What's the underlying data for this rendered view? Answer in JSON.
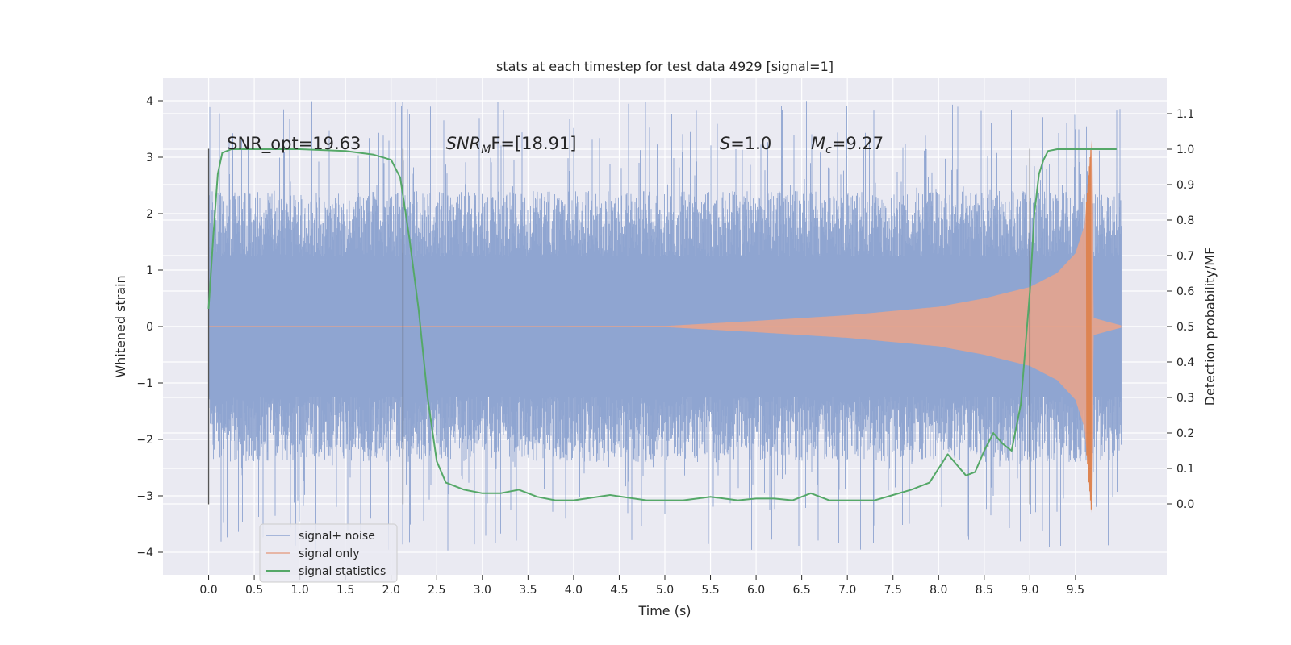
{
  "chart_data": {
    "type": "line",
    "title": "stats at each timestep for test data 4929 [signal=1]",
    "xlabel": "Time (s)",
    "ylabel": "Whitened strain",
    "y2label": "Detection probability/MF",
    "xlim": [
      -0.5,
      10.5
    ],
    "ylim": [
      -4.4,
      4.4
    ],
    "y2lim": [
      -0.2,
      1.2
    ],
    "x_ticks": [
      "0.0",
      "0.5",
      "1.0",
      "1.5",
      "2.0",
      "2.5",
      "3.0",
      "3.5",
      "4.0",
      "4.5",
      "5.0",
      "5.5",
      "6.0",
      "6.5",
      "7.0",
      "7.5",
      "8.0",
      "8.5",
      "9.0",
      "9.5"
    ],
    "y_ticks": [
      "4",
      "3",
      "2",
      "1",
      "0",
      "−1",
      "−2",
      "−3",
      "−4"
    ],
    "y2_ticks": [
      "1.1",
      "1.0",
      "0.9",
      "0.8",
      "0.7",
      "0.6",
      "0.5",
      "0.4",
      "0.3",
      "0.2",
      "0.1",
      "0.0"
    ],
    "grid": true,
    "legend_position": "lower-left",
    "annotations": {
      "snr_opt": "SNR_opt=19.63",
      "snr_mf_label": "SNR",
      "snr_mf_sub": "M",
      "snr_mf_tail": "F=[18.91]",
      "s_label": "S",
      "s_value": "=1.0",
      "mc_label": "M",
      "mc_sub": "c",
      "mc_value": "=9.27"
    },
    "markers_x": [
      0.0,
      2.13,
      9.0
    ],
    "series": [
      {
        "name": "signal+ noise",
        "color": "#8fa5d1",
        "description_envelope": {
          "x_start": 0.0,
          "x_end": 10.0,
          "typical_min": -2.5,
          "typical_max": 2.5,
          "extreme_min": -4.0,
          "extreme_max": 4.0
        }
      },
      {
        "name": "signal only",
        "color": "#e5a48d",
        "envelope": {
          "x": [
            5.0,
            6.0,
            7.0,
            8.0,
            8.5,
            9.0,
            9.3,
            9.5,
            9.6,
            9.65,
            9.68,
            9.7,
            10.0
          ],
          "amp": [
            0.01,
            0.1,
            0.2,
            0.35,
            0.5,
            0.7,
            0.95,
            1.3,
            1.8,
            2.8,
            3.4,
            0.15,
            0.02
          ]
        }
      },
      {
        "name": "signal statistics",
        "color": "#55a868",
        "axis": "right",
        "x": [
          0.0,
          0.05,
          0.1,
          0.15,
          0.25,
          0.5,
          1.0,
          1.5,
          1.8,
          2.0,
          2.1,
          2.2,
          2.3,
          2.4,
          2.5,
          2.6,
          2.8,
          3.0,
          3.2,
          3.4,
          3.6,
          3.8,
          4.0,
          4.4,
          4.8,
          5.2,
          5.5,
          5.8,
          6.0,
          6.2,
          6.4,
          6.6,
          6.8,
          7.0,
          7.3,
          7.5,
          7.7,
          7.9,
          8.0,
          8.1,
          8.2,
          8.3,
          8.4,
          8.5,
          8.6,
          8.7,
          8.8,
          8.9,
          9.0,
          9.05,
          9.1,
          9.15,
          9.2,
          9.3,
          9.5,
          9.7,
          9.95
        ],
        "values": [
          0.55,
          0.75,
          0.93,
          0.99,
          1.0,
          1.0,
          1.0,
          0.995,
          0.985,
          0.97,
          0.92,
          0.75,
          0.55,
          0.3,
          0.12,
          0.06,
          0.04,
          0.03,
          0.03,
          0.04,
          0.02,
          0.01,
          0.01,
          0.025,
          0.01,
          0.01,
          0.02,
          0.01,
          0.015,
          0.015,
          0.01,
          0.03,
          0.01,
          0.01,
          0.01,
          0.025,
          0.04,
          0.06,
          0.1,
          0.14,
          0.11,
          0.08,
          0.09,
          0.15,
          0.2,
          0.17,
          0.15,
          0.28,
          0.6,
          0.82,
          0.93,
          0.97,
          0.995,
          1.0,
          1.0,
          1.0,
          1.0
        ]
      }
    ]
  }
}
